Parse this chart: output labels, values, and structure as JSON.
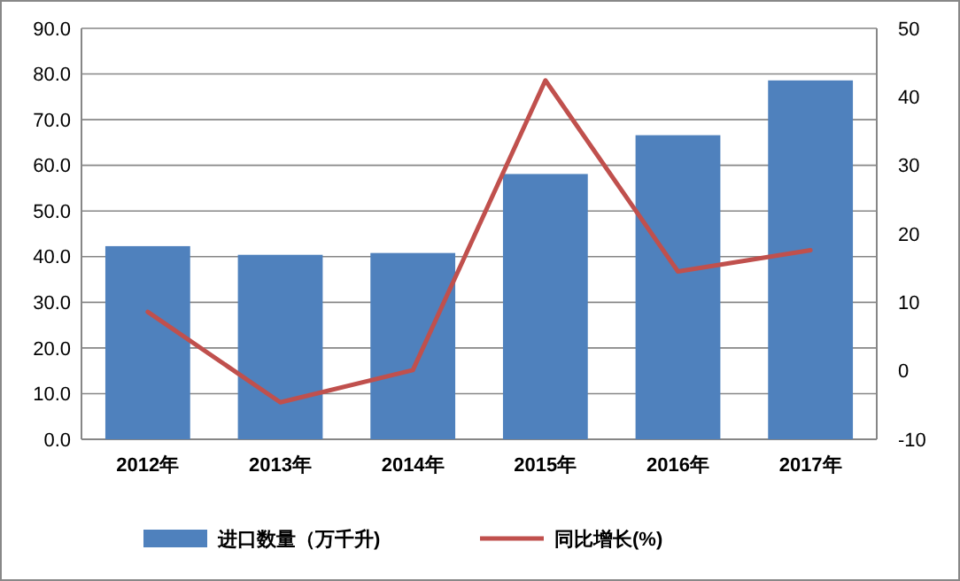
{
  "chart_data": {
    "type": "bar",
    "categories": [
      "2012年",
      "2013年",
      "2014年",
      "2015年",
      "2016年",
      "2017年"
    ],
    "series": [
      {
        "name": "进口数量（万千升)",
        "color": "#4f81bd",
        "values": [
          42.3,
          40.4,
          40.8,
          58.1,
          66.6,
          78.6
        ]
      },
      {
        "name": "同比增长(%)",
        "type": "line",
        "axis": "y2",
        "color": "#c0504d",
        "values": [
          8.6,
          -4.6,
          0.1,
          42.4,
          14.5,
          17.6
        ]
      }
    ],
    "ylim": [
      0,
      90
    ],
    "yticks": [
      {
        "value": 0,
        "label": "0.0"
      },
      {
        "value": 10,
        "label": "10.0"
      },
      {
        "value": 20,
        "label": "20.0"
      },
      {
        "value": 30,
        "label": "30.0"
      },
      {
        "value": 40,
        "label": "40.0"
      },
      {
        "value": 50,
        "label": "50.0"
      },
      {
        "value": 60,
        "label": "60.0"
      },
      {
        "value": 70,
        "label": "70.0"
      },
      {
        "value": 80,
        "label": "80.0"
      },
      {
        "value": 90,
        "label": "90.0"
      }
    ],
    "y2lim": [
      -10,
      50
    ],
    "y2ticks": [
      -10,
      0,
      10,
      20,
      30,
      40,
      50
    ],
    "grid": "y",
    "legend": "bottom"
  }
}
